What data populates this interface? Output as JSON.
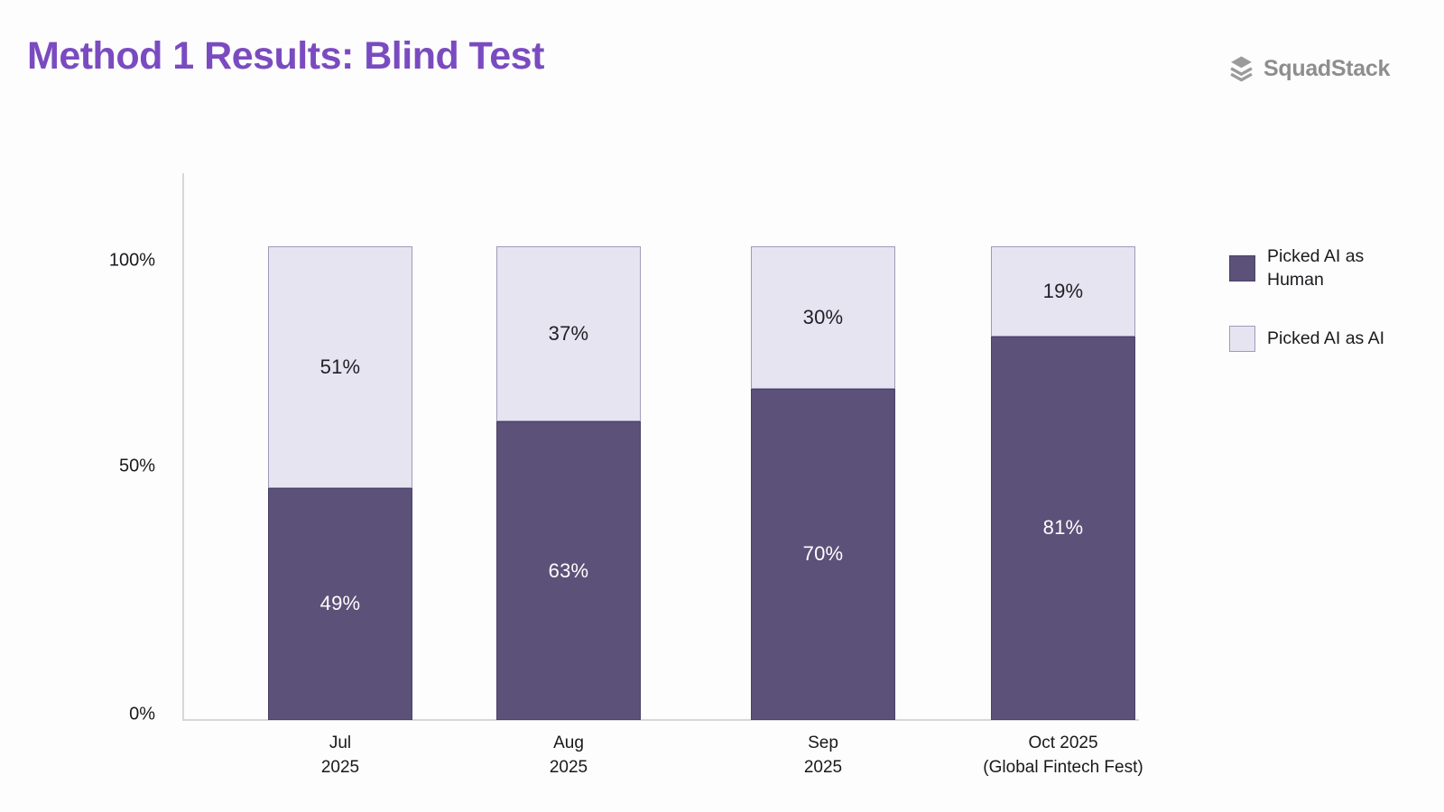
{
  "header": {
    "title": "Method 1 Results: Blind Test",
    "title_color": "#7A4BC0",
    "logo": {
      "name": "SquadStack",
      "icon": "layers-stack-icon",
      "icon_color": "#9B9B9B",
      "text_color": "#8E8E8E"
    }
  },
  "chart_data": {
    "type": "bar",
    "stacked": true,
    "title": "Method 1 Results: Blind Test",
    "categories": [
      [
        "Jul",
        "2025"
      ],
      [
        "Aug",
        "2025"
      ],
      [
        "Sep",
        "2025"
      ],
      [
        "Oct 2025",
        "(Global Fintech Fest)"
      ]
    ],
    "series": [
      {
        "name": "Picked AI as Human",
        "values": [
          49,
          63,
          70,
          81
        ],
        "color": "#5C5178",
        "border_color": "#4A4166",
        "label_color": "#FFFFFF"
      },
      {
        "name": "Picked AI as AI",
        "values": [
          51,
          37,
          30,
          19
        ],
        "color": "#E7E4F2",
        "border_color": "#A099B9",
        "label_color": "#1F1F23"
      }
    ],
    "value_suffix": "%",
    "y_ticks": [
      "100%",
      "50%",
      "0%"
    ],
    "ylim": [
      0,
      100
    ],
    "grid": false,
    "legend_position": "right",
    "axis_color": "#D7D7D7",
    "tick_label_color": "#1A1A1E"
  },
  "legend": {
    "items": [
      {
        "label": "Picked AI as Human",
        "lines": [
          "Picked AI as",
          "Human"
        ],
        "swatch_color": "#5C5178",
        "swatch_border": "#4A4166"
      },
      {
        "label": "Picked AI as AI",
        "lines": [
          "Picked AI as AI"
        ],
        "swatch_color": "#E7E4F2",
        "swatch_border": "#A099B9"
      }
    ]
  }
}
